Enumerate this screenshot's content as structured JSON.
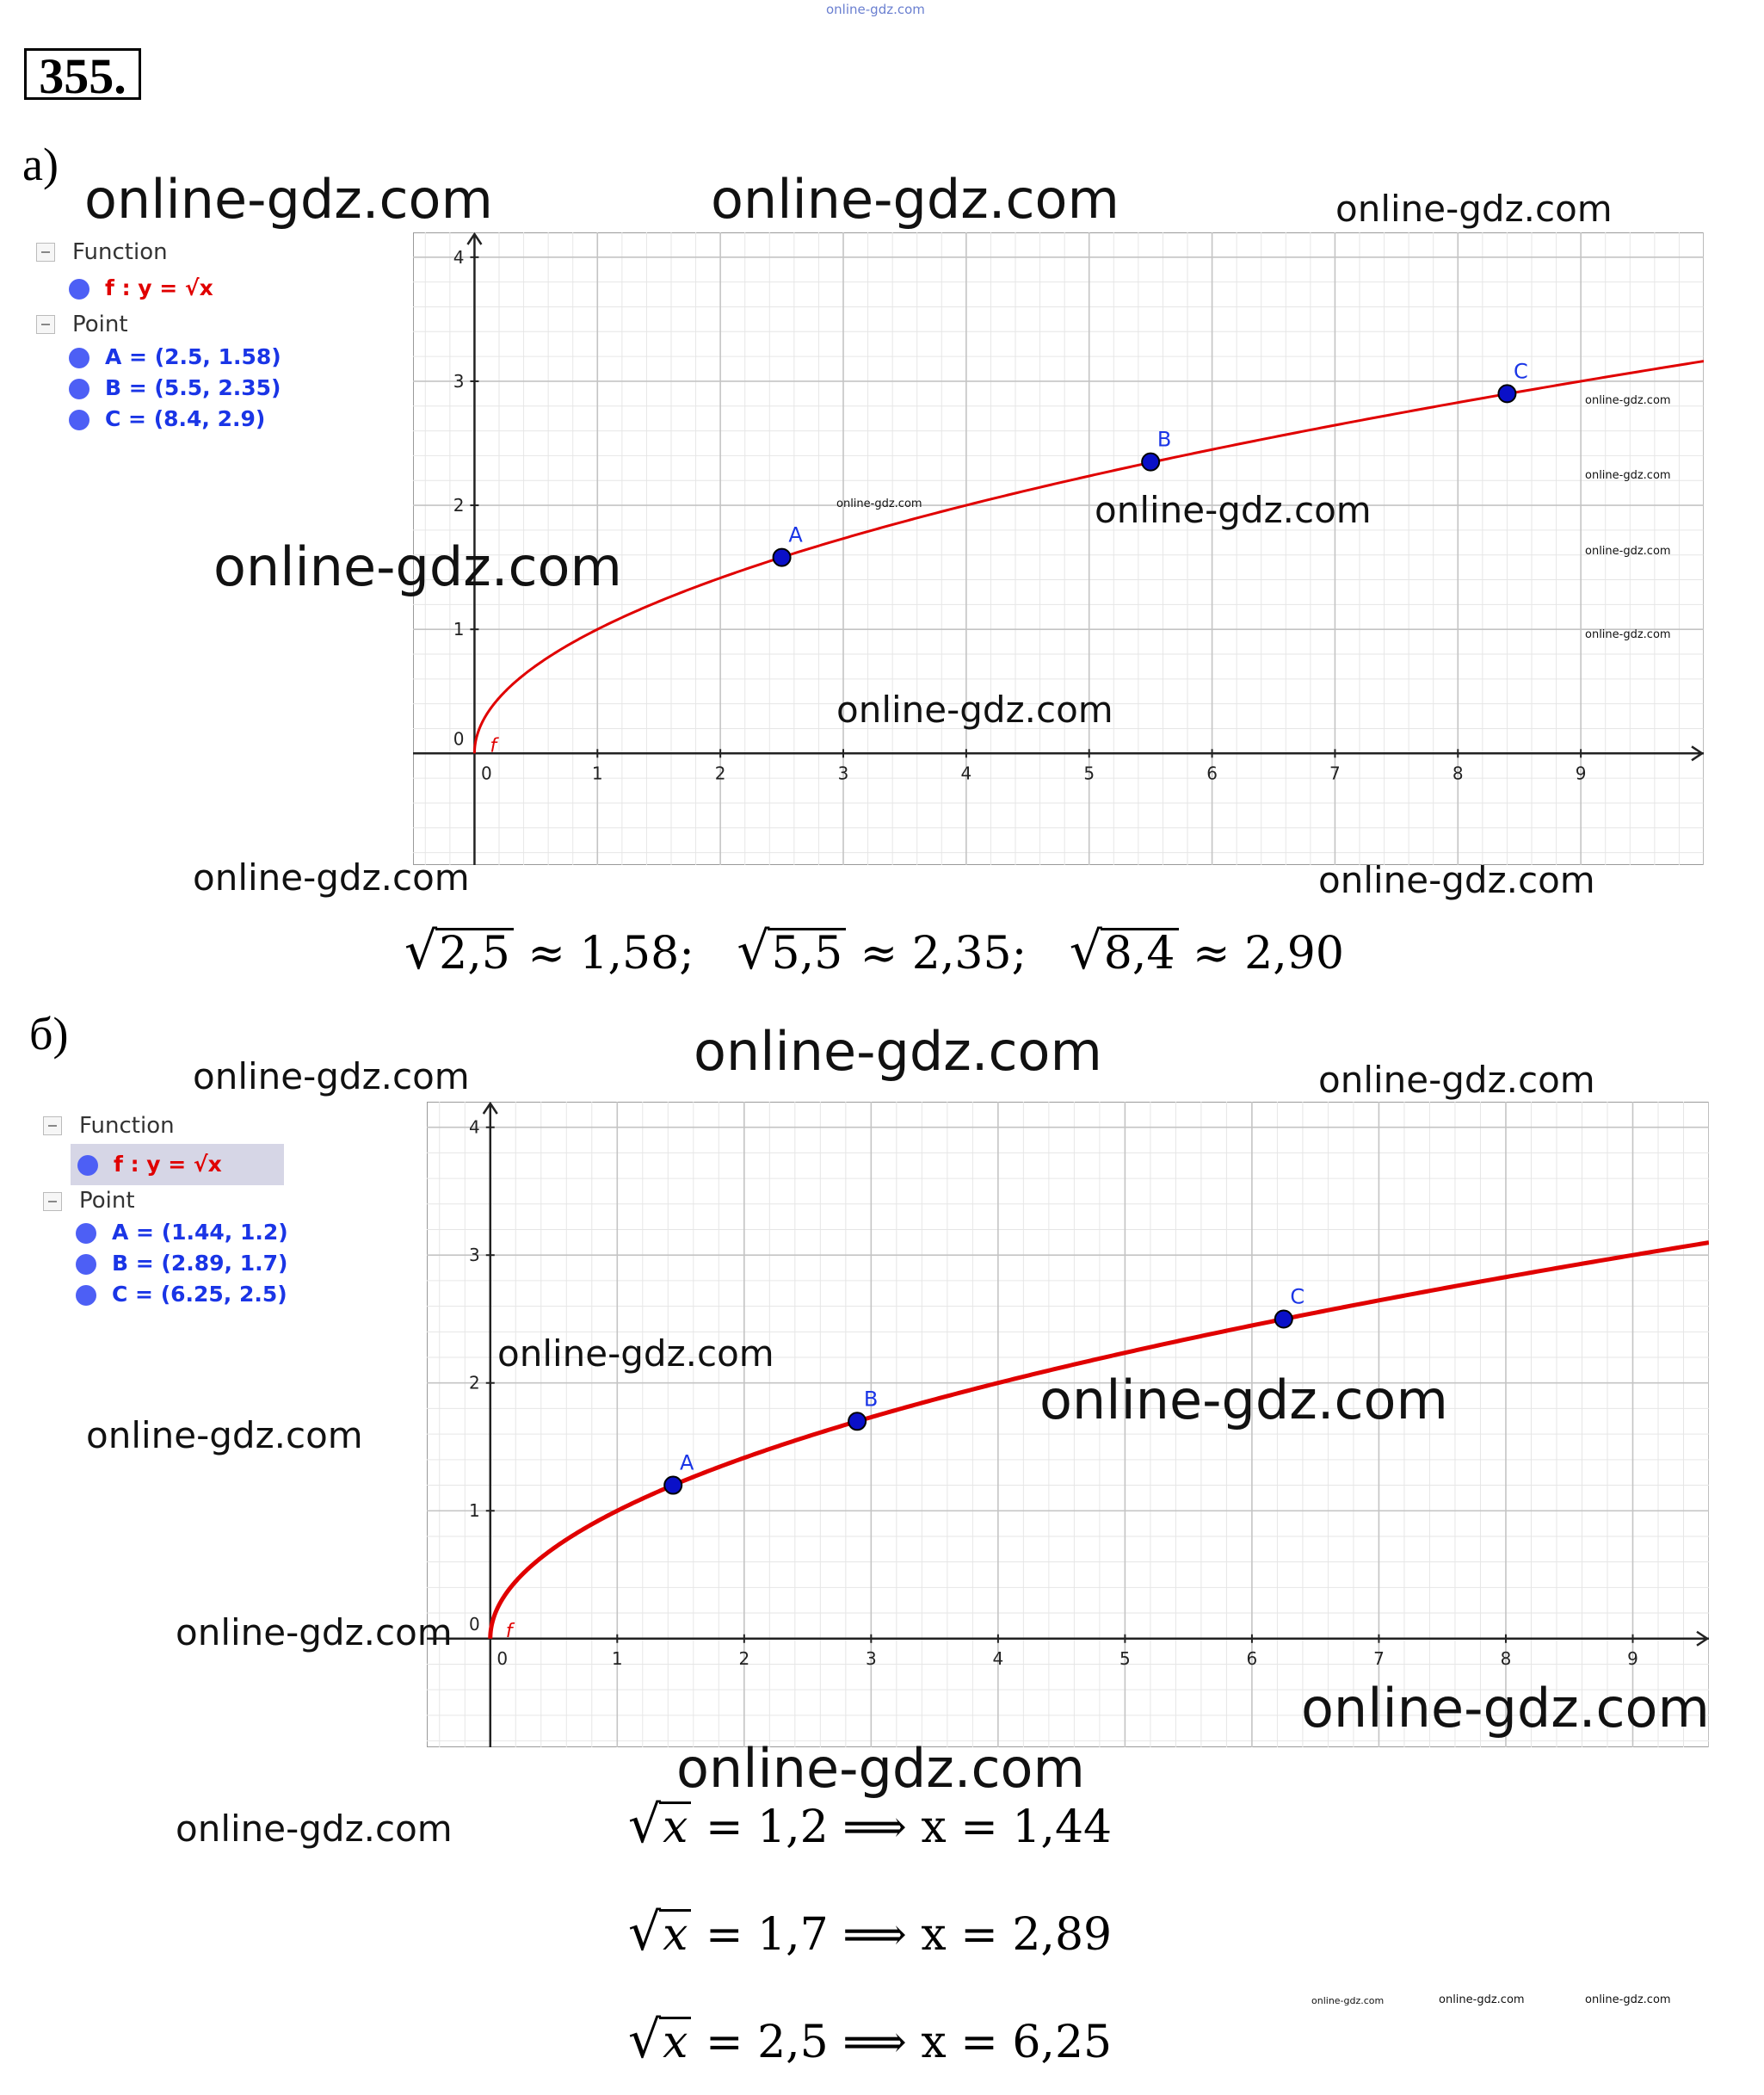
{
  "header_watermark": "online-gdz.com",
  "task_number": "355.",
  "part_a": {
    "label": "а)",
    "panel": {
      "function_header": "Function",
      "function_expr": "f : y = √x",
      "point_header": "Point",
      "points": [
        "A = (2.5, 1.58)",
        "B = (5.5, 2.35)",
        "C = (8.4, 2.9)"
      ]
    },
    "equation": {
      "r1": "2,5",
      "v1": " ≈ 1,58;",
      "r2": "5,5",
      "v2": " ≈ 2,35;",
      "r3": "8,4",
      "v3": " ≈ 2,90"
    }
  },
  "part_b": {
    "label": "б)",
    "panel": {
      "function_header": "Function",
      "function_expr": "f : y = √x",
      "point_header": "Point",
      "points": [
        "A = (1.44, 1.2)",
        "B = (2.89, 1.7)",
        "C = (6.25, 2.5)"
      ]
    },
    "equations": [
      {
        "radicand": "x",
        "rest": " = 1,2 ⟹ x = 1,44"
      },
      {
        "radicand": "x",
        "rest": " = 1,7 ⟹ x = 2,89"
      },
      {
        "radicand": "x",
        "rest": " = 2,5 ⟹ x = 6,25"
      }
    ]
  },
  "watermark_text": "online-gdz.com",
  "chart_data": [
    {
      "type": "line",
      "function_label": "f",
      "x_ticks": [
        0,
        1,
        2,
        3,
        4,
        5,
        6,
        7,
        8,
        9
      ],
      "y_ticks": [
        0,
        1,
        2,
        3,
        4
      ],
      "xlim": [
        -0.5,
        10
      ],
      "ylim": [
        -0.9,
        4.2
      ],
      "grid": true,
      "curve_color": "#e00000",
      "point_color": "#0a10c8",
      "points": [
        {
          "name": "A",
          "x": 2.5,
          "y": 1.58
        },
        {
          "name": "B",
          "x": 5.5,
          "y": 2.35
        },
        {
          "name": "C",
          "x": 8.4,
          "y": 2.9
        }
      ]
    },
    {
      "type": "line",
      "function_label": "f",
      "x_ticks": [
        0,
        1,
        2,
        3,
        4,
        5,
        6,
        7,
        8,
        9
      ],
      "y_ticks": [
        0,
        1,
        2,
        3,
        4
      ],
      "xlim": [
        -0.5,
        9.6
      ],
      "ylim": [
        -0.85,
        4.2
      ],
      "grid": true,
      "curve_color": "#e00000",
      "point_color": "#0a10c8",
      "points": [
        {
          "name": "A",
          "x": 1.44,
          "y": 1.2
        },
        {
          "name": "B",
          "x": 2.89,
          "y": 1.7
        },
        {
          "name": "C",
          "x": 6.25,
          "y": 2.5
        }
      ]
    }
  ]
}
